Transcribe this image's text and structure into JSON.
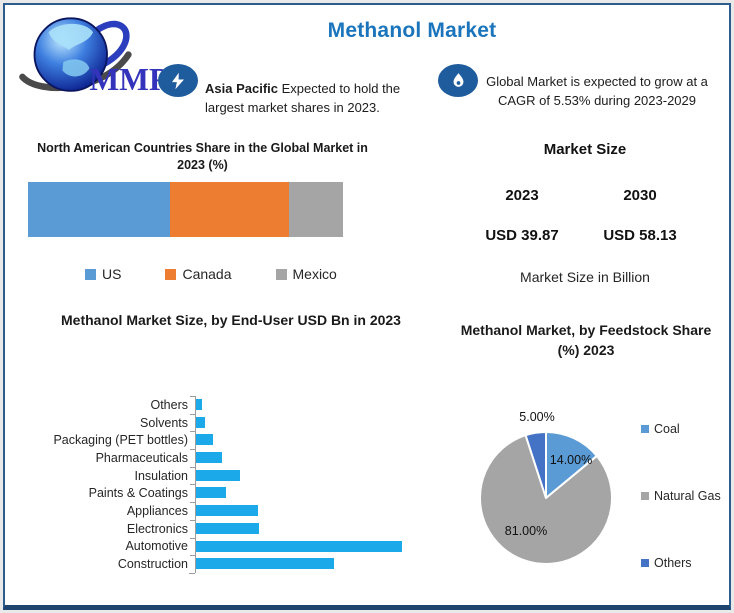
{
  "logo": {
    "text": "MMR"
  },
  "header": {
    "title": "Methanol Market"
  },
  "callouts": {
    "asia_pacific": {
      "icon": "lightning-icon",
      "lead": "Asia Pacific",
      "rest": " Expected to hold the largest market shares in 2023."
    },
    "cagr": {
      "icon": "flame-icon",
      "text": "Global Market is expected to grow at a CAGR of 5.53% during 2023-2029"
    }
  },
  "market_size": {
    "title": "Market Size",
    "columns": [
      {
        "year": "2023",
        "value": "USD 39.87"
      },
      {
        "year": "2030",
        "value": "USD 58.13"
      }
    ],
    "note": "Market Size in Billion"
  },
  "chart_data": [
    {
      "type": "bar",
      "subtype": "stacked-horizontal-100",
      "title": "North American Countries Share in the Global Market in 2023 (%)",
      "categories": [
        "US",
        "Canada",
        "Mexico"
      ],
      "values": [
        45,
        38,
        17
      ],
      "unit": "%",
      "colors": [
        "#5B9BD5",
        "#ED7D31",
        "#A5A5A5"
      ],
      "legend_position": "bottom",
      "data_labels_shown": false
    },
    {
      "type": "bar",
      "subtype": "horizontal",
      "title": "Methanol Market Size, by End-User USD Bn  in 2023",
      "categories": [
        "Others",
        "Solvents",
        "Packaging (PET bottles)",
        "Pharmaceuticals",
        "Insulation",
        "Paints & Coatings",
        "Appliances",
        "Electronics",
        "Automotive",
        "Construction"
      ],
      "values": [
        0.4,
        0.6,
        1.1,
        1.7,
        2.9,
        2.0,
        4.1,
        4.2,
        13.7,
        9.2
      ],
      "unit": "USD Bn",
      "color": "#1BA9EA",
      "value_axis_shown": false,
      "xlim": [
        0,
        14
      ],
      "legend_position": "none"
    },
    {
      "type": "pie",
      "title": "Methanol Market, by Feedstock Share (%) 2023",
      "labels": [
        "Coal",
        "Natural Gas",
        "Others"
      ],
      "values": [
        14,
        81,
        5
      ],
      "data_labels": [
        "14.00%",
        "81.00%",
        "5.00%"
      ],
      "colors": [
        "#5B9BD5",
        "#A5A5A5",
        "#4472C4"
      ],
      "start_angle_deg": 0,
      "direction": "clockwise",
      "legend_position": "right"
    }
  ]
}
